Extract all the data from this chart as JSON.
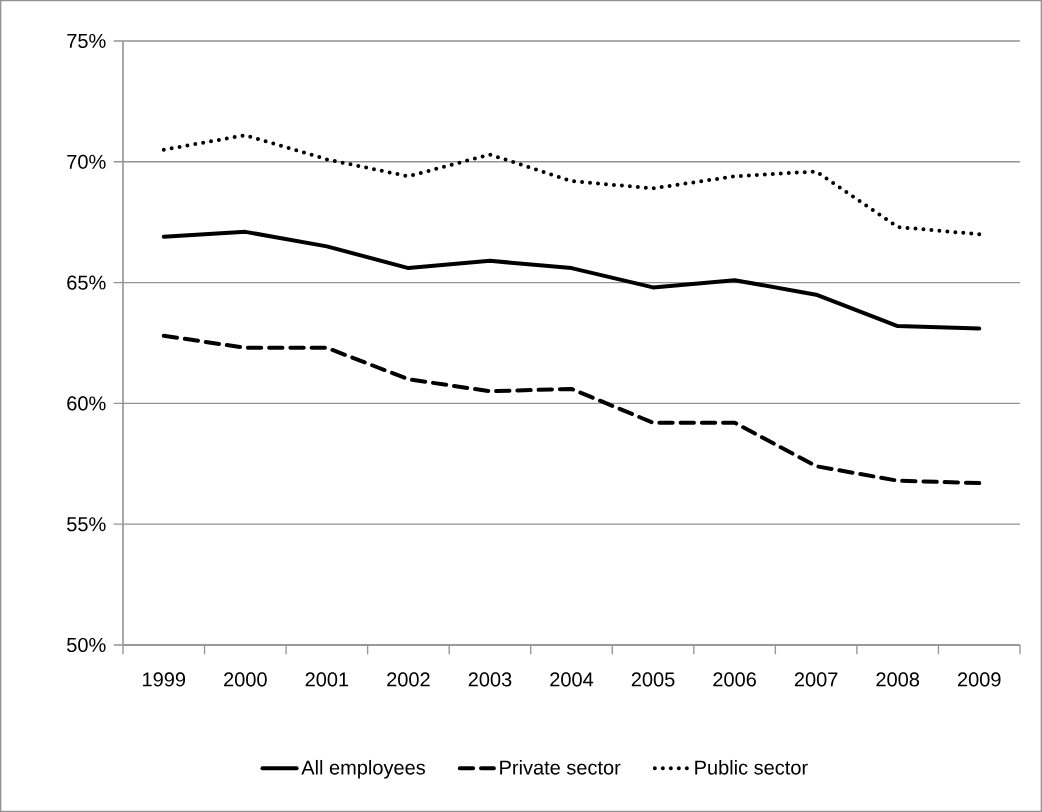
{
  "chart_data": {
    "type": "line",
    "categories": [
      "1999",
      "2000",
      "2001",
      "2002",
      "2003",
      "2004",
      "2005",
      "2006",
      "2007",
      "2008",
      "2009"
    ],
    "ylim": [
      50,
      75
    ],
    "yticks": [
      {
        "value": 50,
        "label": "50%"
      },
      {
        "value": 55,
        "label": "55%"
      },
      {
        "value": 60,
        "label": "60%"
      },
      {
        "value": 65,
        "label": "65%"
      },
      {
        "value": 70,
        "label": "70%"
      },
      {
        "value": 75,
        "label": "75%"
      }
    ],
    "grid": "y",
    "legend": "bottom",
    "marker": "none",
    "series": [
      {
        "name": "All employees",
        "color": "#000000",
        "line_style": "solid",
        "values": [
          66.9,
          67.1,
          66.5,
          65.6,
          65.9,
          65.6,
          64.8,
          65.1,
          64.5,
          63.2,
          63.1
        ]
      },
      {
        "name": "Private sector",
        "color": "#000000",
        "line_style": "dashed",
        "values": [
          62.8,
          62.3,
          62.3,
          61.0,
          60.5,
          60.6,
          59.2,
          59.2,
          57.4,
          56.8,
          56.7
        ]
      },
      {
        "name": "Public sector",
        "color": "#000000",
        "line_style": "dotted",
        "values": [
          70.5,
          71.1,
          70.1,
          69.4,
          70.3,
          69.2,
          68.9,
          69.4,
          69.6,
          67.3,
          67.0
        ]
      }
    ]
  }
}
